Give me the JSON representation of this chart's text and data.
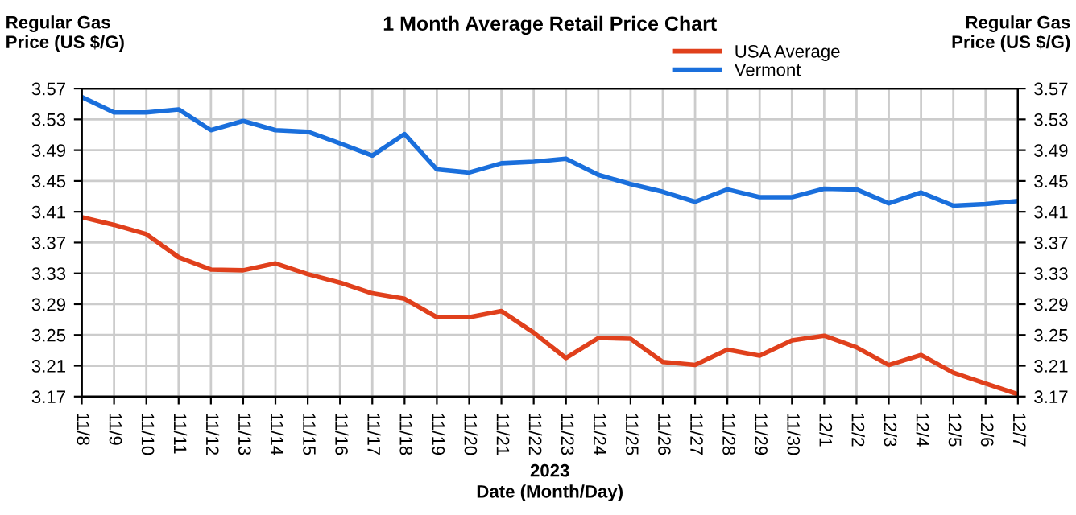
{
  "chart_data": {
    "type": "line",
    "title": "1 Month Average Retail Price Chart",
    "xlabel": "Date (Month/Day)",
    "ylabel": "Regular Gas\nPrice (US $/G)",
    "y2label": "Regular Gas\nPrice (US $/G)",
    "annotations": [
      "2023"
    ],
    "categories": [
      "11/8",
      "11/9",
      "11/10",
      "11/11",
      "11/12",
      "11/13",
      "11/14",
      "11/15",
      "11/16",
      "11/17",
      "11/18",
      "11/19",
      "11/20",
      "11/21",
      "11/22",
      "11/23",
      "11/24",
      "11/25",
      "11/26",
      "11/27",
      "11/28",
      "11/29",
      "11/30",
      "12/1",
      "12/2",
      "12/3",
      "12/4",
      "12/5",
      "12/6",
      "12/7"
    ],
    "series": [
      {
        "name": "USA Average",
        "color": "#e0401c",
        "values": [
          3.403,
          3.393,
          3.381,
          3.351,
          3.335,
          3.334,
          3.343,
          3.329,
          3.318,
          3.304,
          3.297,
          3.273,
          3.273,
          3.281,
          3.253,
          3.22,
          3.246,
          3.245,
          3.215,
          3.211,
          3.231,
          3.223,
          3.243,
          3.249,
          3.234,
          3.211,
          3.224,
          3.201,
          3.187,
          3.173
        ]
      },
      {
        "name": "Vermont",
        "color": "#1a6fdc",
        "values": [
          3.559,
          3.539,
          3.539,
          3.543,
          3.516,
          3.528,
          3.516,
          3.514,
          3.499,
          3.483,
          3.511,
          3.465,
          3.461,
          3.473,
          3.475,
          3.479,
          3.458,
          3.446,
          3.436,
          3.423,
          3.439,
          3.429,
          3.429,
          3.44,
          3.439,
          3.421,
          3.435,
          3.418,
          3.42,
          3.424
        ]
      }
    ],
    "ylim": [
      3.17,
      3.57
    ],
    "yticks": [
      3.17,
      3.21,
      3.25,
      3.29,
      3.33,
      3.37,
      3.41,
      3.45,
      3.49,
      3.53,
      3.57
    ],
    "y2lim": [
      3.17,
      3.57
    ],
    "y2ticks": [
      3.17,
      3.21,
      3.25,
      3.29,
      3.33,
      3.37,
      3.41,
      3.45,
      3.49,
      3.53,
      3.57
    ],
    "grid": true,
    "legend": "top right",
    "marker": "none",
    "line_style": "solid"
  }
}
